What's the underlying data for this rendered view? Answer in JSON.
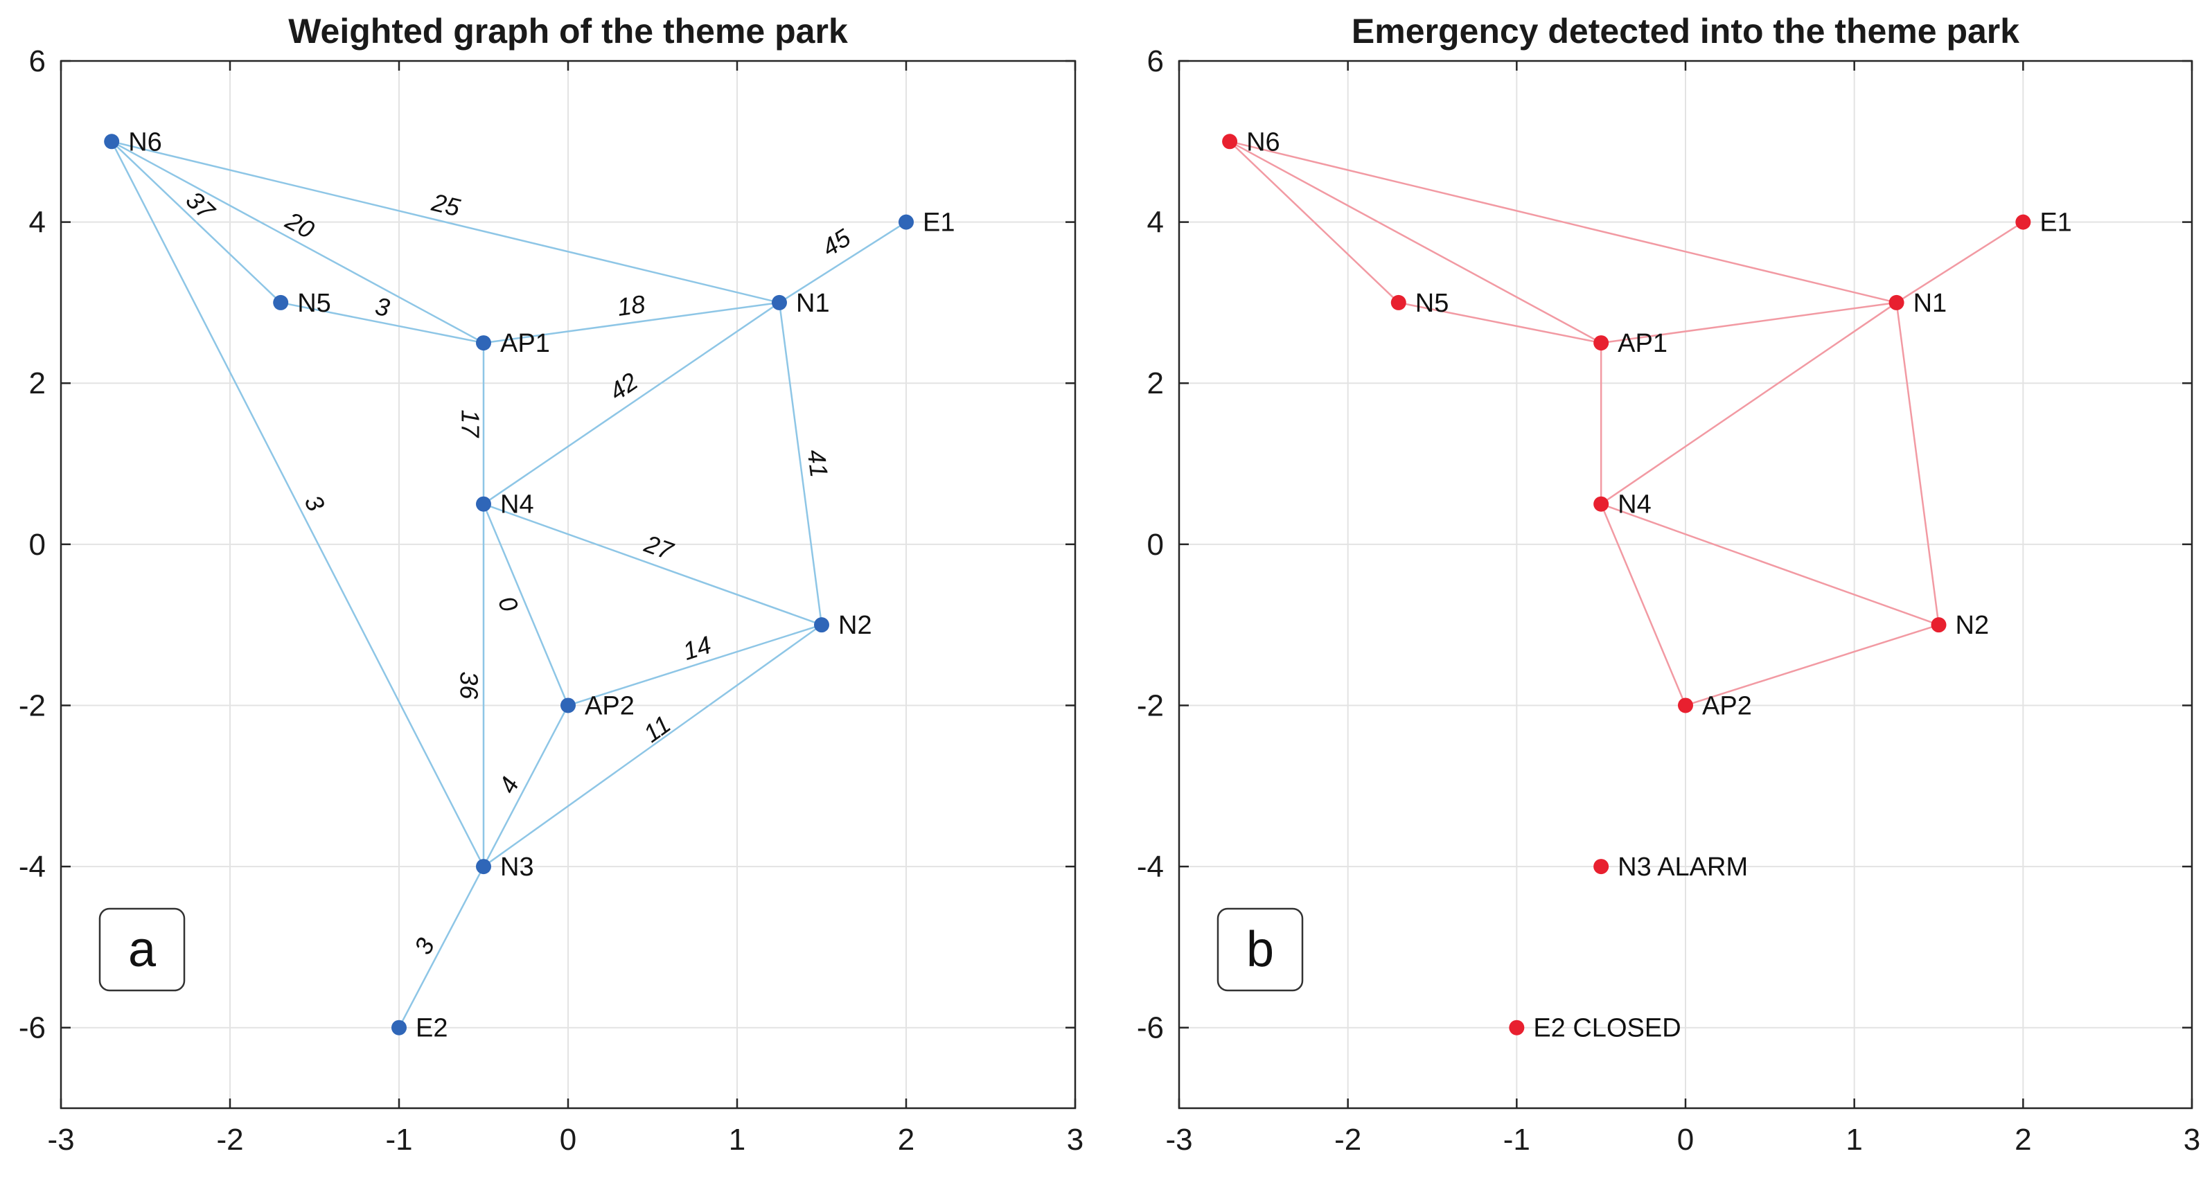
{
  "chart_data": [
    {
      "type": "scatter",
      "panel_tag": "a",
      "title": "Weighted graph of the theme park",
      "xlim": [
        -3,
        3
      ],
      "ylim": [
        -7,
        6
      ],
      "xticks": [
        -3,
        -2,
        -1,
        0,
        1,
        2,
        3
      ],
      "yticks": [
        6,
        4,
        2,
        0,
        -2,
        -4,
        -6
      ],
      "grid": true,
      "node_color": "#2f66b8",
      "edge_color": "#8ec6e6",
      "nodes": [
        {
          "id": "N6",
          "label": "N6",
          "x": -2.7,
          "y": 5
        },
        {
          "id": "N5",
          "label": "N5",
          "x": -1.7,
          "y": 3
        },
        {
          "id": "AP1",
          "label": "AP1",
          "x": -0.5,
          "y": 2.5
        },
        {
          "id": "N1",
          "label": "N1",
          "x": 1.25,
          "y": 3
        },
        {
          "id": "E1",
          "label": "E1",
          "x": 2,
          "y": 4
        },
        {
          "id": "N4",
          "label": "N4",
          "x": -0.5,
          "y": 0.5
        },
        {
          "id": "N2",
          "label": "N2",
          "x": 1.5,
          "y": -1
        },
        {
          "id": "AP2",
          "label": "AP2",
          "x": 0,
          "y": -2
        },
        {
          "id": "N3",
          "label": "N3",
          "x": -0.5,
          "y": -4
        },
        {
          "id": "E2",
          "label": "E2",
          "x": -1,
          "y": -6
        }
      ],
      "edges": [
        {
          "from": "N6",
          "to": "N1",
          "weight": "25"
        },
        {
          "from": "N6",
          "to": "AP1",
          "weight": "20"
        },
        {
          "from": "N6",
          "to": "N5",
          "weight": "37"
        },
        {
          "from": "N6",
          "to": "N3",
          "weight": "3"
        },
        {
          "from": "N5",
          "to": "AP1",
          "weight": "3"
        },
        {
          "from": "AP1",
          "to": "N1",
          "weight": "18"
        },
        {
          "from": "N1",
          "to": "E1",
          "weight": "45"
        },
        {
          "from": "AP1",
          "to": "N4",
          "weight": "17"
        },
        {
          "from": "N4",
          "to": "N1",
          "weight": "42"
        },
        {
          "from": "N1",
          "to": "N2",
          "weight": "41"
        },
        {
          "from": "N4",
          "to": "N2",
          "weight": "27"
        },
        {
          "from": "N4",
          "to": "AP2",
          "weight": "0"
        },
        {
          "from": "N4",
          "to": "N3",
          "weight": "36"
        },
        {
          "from": "AP2",
          "to": "N2",
          "weight": "14"
        },
        {
          "from": "N3",
          "to": "N2",
          "weight": "11"
        },
        {
          "from": "N3",
          "to": "AP2",
          "weight": "4"
        },
        {
          "from": "N3",
          "to": "E2",
          "weight": "3"
        }
      ]
    },
    {
      "type": "scatter",
      "panel_tag": "b",
      "title": "Emergency detected into the theme park",
      "xlim": [
        -3,
        3
      ],
      "ylim": [
        -7,
        6
      ],
      "xticks": [
        -3,
        -2,
        -1,
        0,
        1,
        2,
        3
      ],
      "yticks": [
        6,
        4,
        2,
        0,
        -2,
        -4,
        -6
      ],
      "grid": true,
      "node_color": "#e8202f",
      "edge_color": "#f29aa3",
      "nodes": [
        {
          "id": "N6",
          "label": "N6",
          "x": -2.7,
          "y": 5
        },
        {
          "id": "N5",
          "label": "N5",
          "x": -1.7,
          "y": 3
        },
        {
          "id": "AP1",
          "label": "AP1",
          "x": -0.5,
          "y": 2.5
        },
        {
          "id": "N1",
          "label": "N1",
          "x": 1.25,
          "y": 3
        },
        {
          "id": "E1",
          "label": "E1",
          "x": 2,
          "y": 4
        },
        {
          "id": "N4",
          "label": "N4",
          "x": -0.5,
          "y": 0.5
        },
        {
          "id": "N2",
          "label": "N2",
          "x": 1.5,
          "y": -1
        },
        {
          "id": "AP2",
          "label": "AP2",
          "x": 0,
          "y": -2
        },
        {
          "id": "N3",
          "label": "N3 ALARM",
          "x": -0.5,
          "y": -4
        },
        {
          "id": "E2",
          "label": "E2 CLOSED",
          "x": -1,
          "y": -6
        }
      ],
      "edges": [
        {
          "from": "N6",
          "to": "N1"
        },
        {
          "from": "N6",
          "to": "AP1"
        },
        {
          "from": "N6",
          "to": "N5"
        },
        {
          "from": "N5",
          "to": "AP1"
        },
        {
          "from": "AP1",
          "to": "N1"
        },
        {
          "from": "N1",
          "to": "E1"
        },
        {
          "from": "AP1",
          "to": "N4"
        },
        {
          "from": "N4",
          "to": "N1"
        },
        {
          "from": "N1",
          "to": "N2"
        },
        {
          "from": "N4",
          "to": "N2"
        },
        {
          "from": "N4",
          "to": "AP2"
        },
        {
          "from": "AP2",
          "to": "N2"
        }
      ]
    }
  ]
}
